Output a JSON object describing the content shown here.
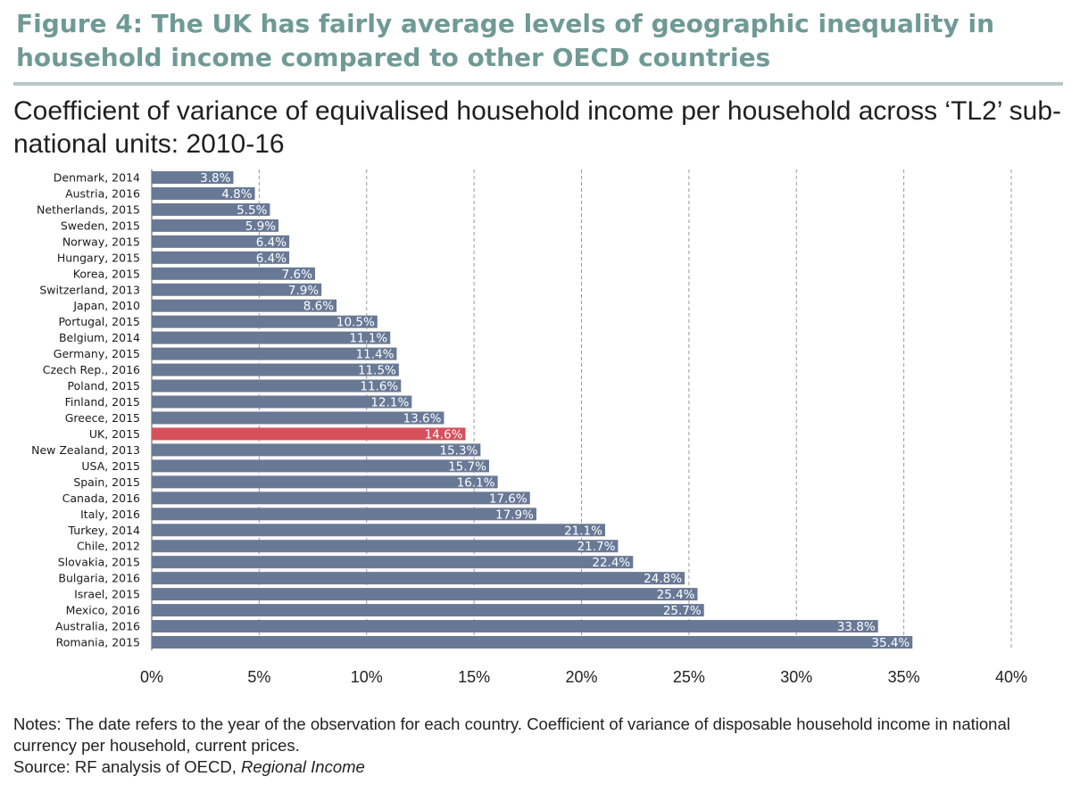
{
  "figure": {
    "title": "Figure 4: The UK has fairly average levels of geographic inequality in household income compared to other OECD countries",
    "subtitle": "Coefficient of variance of equivalised household income per household across ‘TL2’ sub-national units: 2010-16"
  },
  "notes": {
    "line1": "Notes: The date refers to the year of the observation for each country. Coefficient of variance of disposable household income in national currency per household, current prices.",
    "source_prefix": "Source: RF analysis of OECD, ",
    "source_title": "Regional Income"
  },
  "chart_data": {
    "type": "bar",
    "orientation": "horizontal",
    "categories": [
      "Denmark, 2014",
      "Austria, 2016",
      "Netherlands, 2015",
      "Sweden, 2015",
      "Norway, 2015",
      "Hungary, 2015",
      "Korea, 2015",
      "Switzerland, 2013",
      "Japan, 2010",
      "Portugal, 2015",
      "Belgium, 2014",
      "Germany, 2015",
      "Czech Rep., 2016",
      "Poland, 2015",
      "Finland, 2015",
      "Greece, 2015",
      "UK, 2015",
      "New Zealand, 2013",
      "USA, 2015",
      "Spain, 2015",
      "Canada, 2016",
      "Italy, 2016",
      "Turkey, 2014",
      "Chile, 2012",
      "Slovakia, 2015",
      "Bulgaria, 2016",
      "Israel, 2015",
      "Mexico, 2016",
      "Australia, 2016",
      "Romania, 2015"
    ],
    "values": [
      3.8,
      4.8,
      5.5,
      5.9,
      6.4,
      6.4,
      7.6,
      7.9,
      8.6,
      10.5,
      11.1,
      11.4,
      11.5,
      11.6,
      12.1,
      13.6,
      14.6,
      15.3,
      15.7,
      16.1,
      17.6,
      17.9,
      21.1,
      21.7,
      22.4,
      24.8,
      25.4,
      25.7,
      33.8,
      35.4
    ],
    "data_labels": [
      "3.8%",
      "4.8%",
      "5.5%",
      "5.9%",
      "6.4%",
      "6.4%",
      "7.6%",
      "7.9%",
      "8.6%",
      "10.5%",
      "11.1%",
      "11.4%",
      "11.5%",
      "11.6%",
      "12.1%",
      "13.6%",
      "14.6%",
      "15.3%",
      "15.7%",
      "16.1%",
      "17.6%",
      "17.9%",
      "21.1%",
      "21.7%",
      "22.4%",
      "24.8%",
      "25.4%",
      "25.7%",
      "33.8%",
      "35.4%"
    ],
    "highlight_category": "UK, 2015",
    "xlim": [
      0,
      40
    ],
    "x_ticks": [
      0,
      5,
      10,
      15,
      20,
      25,
      30,
      35,
      40
    ],
    "x_tick_labels": [
      "0%",
      "5%",
      "10%",
      "15%",
      "20%",
      "25%",
      "30%",
      "35%",
      "40%"
    ],
    "grid": "vertical dashed",
    "colors": {
      "bar": "#687996",
      "highlight": "#d6505a",
      "grid": "#9a9a9a"
    }
  }
}
